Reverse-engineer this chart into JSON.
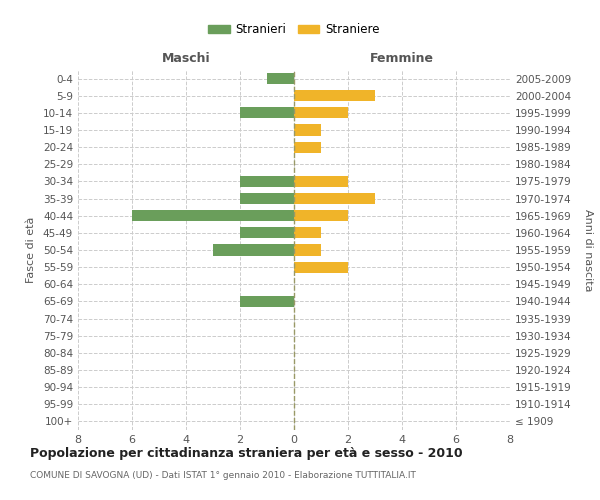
{
  "age_groups": [
    "100+",
    "95-99",
    "90-94",
    "85-89",
    "80-84",
    "75-79",
    "70-74",
    "65-69",
    "60-64",
    "55-59",
    "50-54",
    "45-49",
    "40-44",
    "35-39",
    "30-34",
    "25-29",
    "20-24",
    "15-19",
    "10-14",
    "5-9",
    "0-4"
  ],
  "birth_years": [
    "≤ 1909",
    "1910-1914",
    "1915-1919",
    "1920-1924",
    "1925-1929",
    "1930-1934",
    "1935-1939",
    "1940-1944",
    "1945-1949",
    "1950-1954",
    "1955-1959",
    "1960-1964",
    "1965-1969",
    "1970-1974",
    "1975-1979",
    "1980-1984",
    "1985-1989",
    "1990-1994",
    "1995-1999",
    "2000-2004",
    "2005-2009"
  ],
  "males": [
    0,
    0,
    0,
    0,
    0,
    0,
    0,
    2,
    0,
    0,
    3,
    2,
    6,
    2,
    2,
    0,
    0,
    0,
    2,
    0,
    1
  ],
  "females": [
    0,
    0,
    0,
    0,
    0,
    0,
    0,
    0,
    0,
    2,
    1,
    1,
    2,
    3,
    2,
    0,
    1,
    1,
    2,
    3,
    0
  ],
  "male_color": "#6a9e5b",
  "female_color": "#f0b429",
  "title": "Popolazione per cittadinanza straniera per età e sesso - 2010",
  "subtitle": "COMUNE DI SAVOGNA (UD) - Dati ISTAT 1° gennaio 2010 - Elaborazione TUTTITALIA.IT",
  "xlabel_left": "Maschi",
  "xlabel_right": "Femmine",
  "ylabel_left": "Fasce di età",
  "ylabel_right": "Anni di nascita",
  "legend_male": "Stranieri",
  "legend_female": "Straniere",
  "xlim": 8,
  "background_color": "#ffffff",
  "grid_color": "#cccccc"
}
